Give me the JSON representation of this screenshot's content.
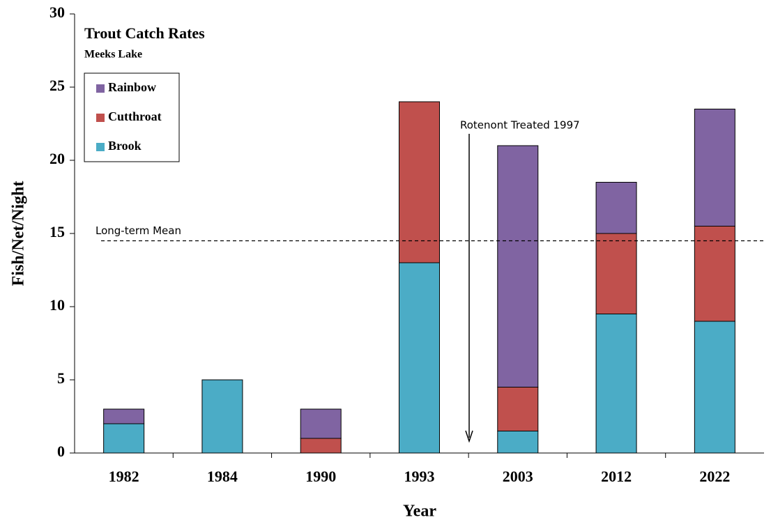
{
  "chart_data": {
    "type": "stacked_bar",
    "title": "Trout Catch Rates",
    "subtitle": "Meeks Lake",
    "xlabel": "Year",
    "ylabel": "Fish/Net/Night",
    "categories": [
      "1982",
      "1984",
      "1990",
      "1993",
      "2003",
      "2012",
      "2022"
    ],
    "series": [
      {
        "name": "Brook",
        "color": "#4bacc6",
        "values": [
          2,
          5,
          0,
          13,
          1.5,
          9.5,
          9
        ]
      },
      {
        "name": "Cutthroat",
        "color": "#c0504d",
        "values": [
          0,
          0,
          1,
          11,
          3,
          5.5,
          6.5
        ]
      },
      {
        "name": "Rainbow",
        "color": "#8064a2",
        "values": [
          1,
          0,
          2,
          0,
          16.5,
          3.5,
          8
        ]
      }
    ],
    "ylim": [
      0,
      30
    ],
    "yticks": [
      0,
      5,
      10,
      15,
      20,
      25,
      30
    ],
    "mean_line": {
      "label": "Long-term Mean",
      "value": 14.5
    },
    "annotation": "Rotenont Treated 1997",
    "legend": "upper left"
  }
}
